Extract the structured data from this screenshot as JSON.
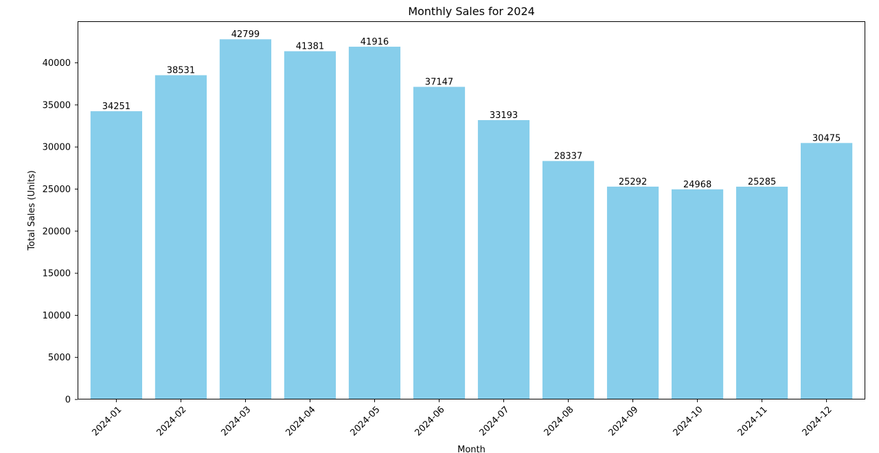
{
  "chart_data": {
    "type": "bar",
    "title": "Monthly Sales for 2024",
    "xlabel": "Month",
    "ylabel": "Total Sales (Units)",
    "categories": [
      "2024-01",
      "2024-02",
      "2024-03",
      "2024-04",
      "2024-05",
      "2024-06",
      "2024-07",
      "2024-08",
      "2024-09",
      "2024-10",
      "2024-11",
      "2024-12"
    ],
    "values": [
      34251,
      38531,
      42799,
      41381,
      41916,
      37147,
      33193,
      28337,
      25292,
      24968,
      25285,
      30475
    ],
    "ylim": [
      0,
      44939
    ],
    "yticks": [
      0,
      5000,
      10000,
      15000,
      20000,
      25000,
      30000,
      35000,
      40000
    ],
    "grid": false,
    "bar_color": "#87CEEB",
    "axis_color": "#000000",
    "data_labels": true
  }
}
